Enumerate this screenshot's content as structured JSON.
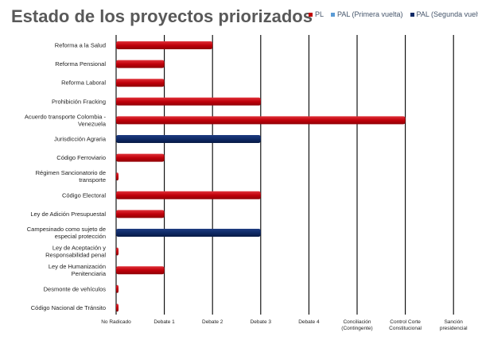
{
  "chart_data": {
    "type": "bar",
    "orientation": "horizontal",
    "title": "Estado de los proyectos priorizados",
    "legend": {
      "placement": "top-right",
      "entries": [
        {
          "name": "PL",
          "color": "#c00000"
        },
        {
          "name": "PAL (Primera vuelta)",
          "color": "#5b9bd5"
        },
        {
          "name": "PAL (Segunda vuelta)",
          "color": "#0f2a66"
        }
      ]
    },
    "x_tick_labels": [
      [
        "No Radicado"
      ],
      [
        "Debate 1"
      ],
      [
        "Debate 2"
      ],
      [
        "Debate 3"
      ],
      [
        "Debate 4"
      ],
      [
        "Conciliación",
        "(Contingente)"
      ],
      [
        "Control Corte",
        "Constitucional"
      ],
      [
        "Sanción",
        "presidencial"
      ]
    ],
    "xlim": [
      0,
      7
    ],
    "grid": "vertical",
    "categories": [
      {
        "label": [
          "Reforma a la Salud"
        ],
        "value": 2,
        "series": "PL"
      },
      {
        "label": [
          "Reforma Pensional"
        ],
        "value": 1,
        "series": "PL"
      },
      {
        "label": [
          "Reforma Laboral"
        ],
        "value": 1,
        "series": "PL"
      },
      {
        "label": [
          "Prohibición Fracking"
        ],
        "value": 3,
        "series": "PL"
      },
      {
        "label": [
          "Acuerdo transporte Colombia -",
          "Venezuela"
        ],
        "value": 6,
        "series": "PL"
      },
      {
        "label": [
          "Jurisdicción Agraria"
        ],
        "value": 3,
        "series": "PAL (Segunda vuelta)"
      },
      {
        "label": [
          "Código Ferroviario"
        ],
        "value": 1,
        "series": "PL"
      },
      {
        "label": [
          "Régimen Sancionatorio de",
          "transporte"
        ],
        "value": 0.05,
        "series": "PL"
      },
      {
        "label": [
          "Código Electoral"
        ],
        "value": 3,
        "series": "PL"
      },
      {
        "label": [
          "Ley de Adición Presupuestal"
        ],
        "value": 1,
        "series": "PL"
      },
      {
        "label": [
          "Campesinado como sujeto de",
          "especial protección"
        ],
        "value": 3,
        "series": "PAL (Segunda vuelta)"
      },
      {
        "label": [
          "Ley de Aceptación y",
          "Responsabilidad penal"
        ],
        "value": 0.05,
        "series": "PL"
      },
      {
        "label": [
          "Ley de Humanización",
          "Penitenciaria"
        ],
        "value": 1,
        "series": "PL"
      },
      {
        "label": [
          "Desmonte de vehículos"
        ],
        "value": 0.05,
        "series": "PL"
      },
      {
        "label": [
          "Código Nacional de Tránsito"
        ],
        "value": 0.05,
        "series": "PL"
      }
    ]
  }
}
